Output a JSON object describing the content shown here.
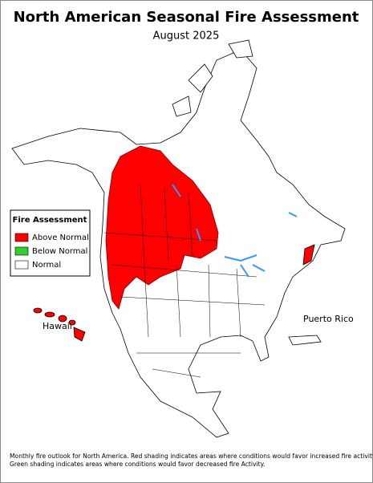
{
  "header": {
    "title": "North American Seasonal Fire Assessment",
    "subtitle": "August 2025"
  },
  "legend": {
    "title": "Fire Assessment",
    "items": [
      {
        "label": "Above Normal",
        "color": "#ff0000"
      },
      {
        "label": "Below Normal",
        "color": "#33cc33"
      },
      {
        "label": "Normal",
        "color": "#ffffff"
      }
    ]
  },
  "labels": {
    "hawaii": "Hawaii",
    "puerto_rico": "Puerto Rico"
  },
  "footnote": [
    "Monthly fire outlook for North America. Red shading indicates areas where conditions would favor increased fire activity.",
    "Green shading indicates areas where conditions would favor decreased fire Activity."
  ]
}
